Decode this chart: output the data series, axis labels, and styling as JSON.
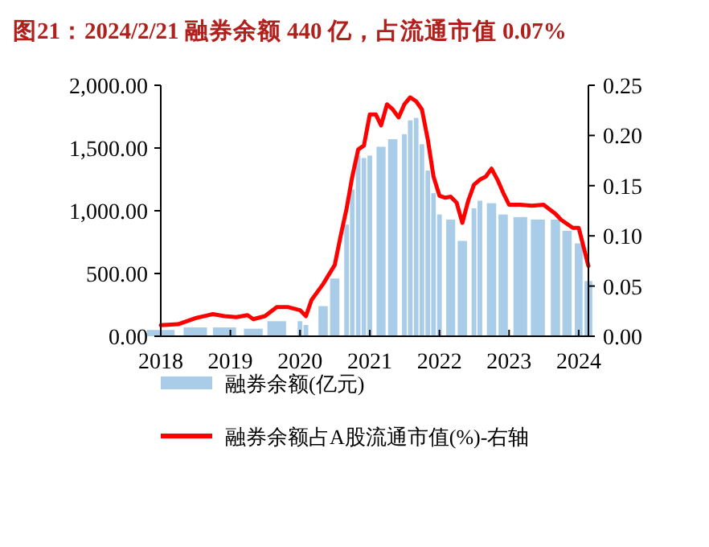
{
  "chart_data": {
    "type": "bar",
    "title": "图21：2024/2/21 融券余额 440 亿，占流通市值 0.07%",
    "xlim": [
      "2018-01",
      "2024-02-21"
    ],
    "xticks": [
      "2018",
      "2019",
      "2020",
      "2021",
      "2022",
      "2023",
      "2024"
    ],
    "ylim": [
      0,
      2000
    ],
    "yticks": [
      {
        "value": 0,
        "label": "0.00"
      },
      {
        "value": 500,
        "label": "500.00"
      },
      {
        "value": 1000,
        "label": "1,000.00"
      },
      {
        "value": 1500,
        "label": "1,500.00"
      },
      {
        "value": 2000,
        "label": "2,000.00"
      }
    ],
    "y2lim": [
      0,
      0.25
    ],
    "y2ticks": [
      {
        "value": 0,
        "label": "0.00"
      },
      {
        "value": 0.05,
        "label": "0.05"
      },
      {
        "value": 0.1,
        "label": "0.10"
      },
      {
        "value": 0.15,
        "label": "0.15"
      },
      {
        "value": 0.2,
        "label": "0.20"
      },
      {
        "value": 0.25,
        "label": "0.25"
      }
    ],
    "legend": "bottom",
    "grid": false,
    "series": [
      {
        "name": "融券余额(亿元)",
        "color": "#a9cce8",
        "x": [
          "2018-01",
          "2018-07",
          "2018-12",
          "2019-05",
          "2019-09",
          "2020-01",
          "2020-02",
          "2020-05",
          "2020-07",
          "2020-09",
          "2020-10",
          "2020-11",
          "2020-12",
          "2021-01",
          "2021-03",
          "2021-05",
          "2021-07",
          "2021-08",
          "2021-09",
          "2021-10",
          "2021-11",
          "2021-12",
          "2022-01",
          "2022-03",
          "2022-05",
          "2022-07",
          "2022-08",
          "2022-10",
          "2022-12",
          "2023-03",
          "2023-06",
          "2023-09",
          "2023-11",
          "2024-01",
          "2024-02-21"
        ],
        "values": [
          50,
          70,
          70,
          60,
          120,
          120,
          90,
          240,
          460,
          890,
          1170,
          1440,
          1420,
          1440,
          1510,
          1570,
          1610,
          1720,
          1740,
          1530,
          1320,
          1140,
          970,
          930,
          760,
          1020,
          1080,
          1060,
          970,
          950,
          930,
          930,
          840,
          740,
          440
        ]
      },
      {
        "name": "融券余额占A股流通市值(%)-右轴",
        "type": "line",
        "axis": "y2",
        "color": "#ff0000",
        "x": [
          "2018-01",
          "2018-04",
          "2018-07",
          "2018-10",
          "2018-12",
          "2019-02",
          "2019-04",
          "2019-05",
          "2019-07",
          "2019-09",
          "2019-11",
          "2020-01",
          "2020-02",
          "2020-03",
          "2020-05",
          "2020-07",
          "2020-08",
          "2020-09",
          "2020-10",
          "2020-11",
          "2020-12",
          "2021-01",
          "2021-02",
          "2021-03",
          "2021-04",
          "2021-05",
          "2021-06",
          "2021-07",
          "2021-08",
          "2021-09",
          "2021-10",
          "2021-11",
          "2021-12",
          "2022-01",
          "2022-02",
          "2022-03",
          "2022-04",
          "2022-05",
          "2022-06",
          "2022-07",
          "2022-08",
          "2022-09",
          "2022-10",
          "2022-11",
          "2022-12",
          "2023-01",
          "2023-03",
          "2023-05",
          "2023-07",
          "2023-09",
          "2023-10",
          "2023-12",
          "2024-01",
          "2024-02-21"
        ],
        "values": [
          0.011,
          0.012,
          0.018,
          0.022,
          0.02,
          0.019,
          0.021,
          0.017,
          0.02,
          0.029,
          0.029,
          0.026,
          0.02,
          0.036,
          0.052,
          0.071,
          0.1,
          0.127,
          0.159,
          0.186,
          0.19,
          0.221,
          0.221,
          0.21,
          0.231,
          0.226,
          0.218,
          0.231,
          0.238,
          0.234,
          0.226,
          0.196,
          0.159,
          0.14,
          0.138,
          0.139,
          0.133,
          0.113,
          0.135,
          0.151,
          0.156,
          0.159,
          0.167,
          0.156,
          0.143,
          0.131,
          0.131,
          0.13,
          0.131,
          0.122,
          0.116,
          0.108,
          0.108,
          0.07
        ]
      }
    ]
  }
}
